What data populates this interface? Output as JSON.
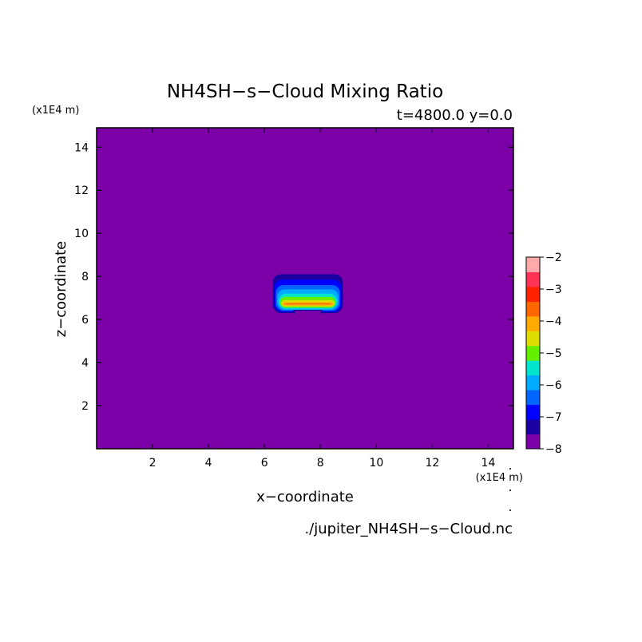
{
  "figure": {
    "title": "NH4SH−s−Cloud Mixing Ratio",
    "subtitle": "t=4800.0 y=0.0",
    "source_file": "./jupiter_NH4SH−s−Cloud.nc",
    "background_color": "#7b00a8"
  },
  "chart_data": {
    "type": "heatmap",
    "title": "NH4SH−s−Cloud Mixing Ratio",
    "subtitle": "t=4800.0 y=0.0",
    "xlabel": "x−coordinate",
    "ylabel": "z−coordinate",
    "x_unit": "(x1E4 m)",
    "y_unit": "(x1E4 m)",
    "xlim": [
      0,
      14.9
    ],
    "ylim": [
      0,
      14.9
    ],
    "x_ticks": [
      2,
      4,
      6,
      8,
      10,
      12,
      14
    ],
    "y_ticks": [
      2,
      4,
      6,
      8,
      10,
      12,
      14
    ],
    "colorbar": {
      "levels": [
        -8,
        -7.5,
        -7,
        -6.5,
        -6,
        -5.5,
        -5,
        -4.5,
        -4,
        -3.5,
        -3,
        -2.5,
        -2
      ],
      "tick_labels": [
        "−2",
        "−3",
        "−4",
        "−5",
        "−6",
        "−7",
        "−8"
      ],
      "colors": [
        "#7b00a8",
        "#1a00a0",
        "#0000ff",
        "#0066ff",
        "#00aaff",
        "#00e5cc",
        "#66ee00",
        "#dddd00",
        "#ffaa00",
        "#ff6600",
        "#ff2200",
        "#ff3355",
        "#ffaaaa"
      ]
    },
    "cloud": {
      "x_extent": [
        6.3,
        8.8
      ],
      "z_extent": [
        6.3,
        8.1
      ],
      "bands": [
        {
          "level": -7.5,
          "x": [
            6.3,
            8.8
          ],
          "z": [
            6.3,
            8.1
          ]
        },
        {
          "level": -7.0,
          "x": [
            6.35,
            8.75
          ],
          "z": [
            6.35,
            7.85
          ]
        },
        {
          "level": -6.5,
          "x": [
            6.4,
            8.7
          ],
          "z": [
            6.4,
            7.6
          ]
        },
        {
          "level": -6.0,
          "x": [
            6.45,
            8.65
          ],
          "z": [
            6.45,
            7.4
          ]
        },
        {
          "level": -5.5,
          "x": [
            6.5,
            8.6
          ],
          "z": [
            6.5,
            7.2
          ]
        },
        {
          "level": -5.0,
          "x": [
            6.55,
            8.55
          ],
          "z": [
            6.55,
            7.05
          ]
        },
        {
          "level": -4.5,
          "x": [
            6.6,
            8.5
          ],
          "z": [
            6.6,
            6.9
          ]
        },
        {
          "level": -4.0,
          "x": [
            6.65,
            8.45
          ],
          "z": [
            6.65,
            6.8
          ]
        },
        {
          "level": -3.5,
          "x": [
            6.75,
            8.35
          ],
          "z": [
            6.7,
            6.75
          ]
        }
      ]
    }
  }
}
